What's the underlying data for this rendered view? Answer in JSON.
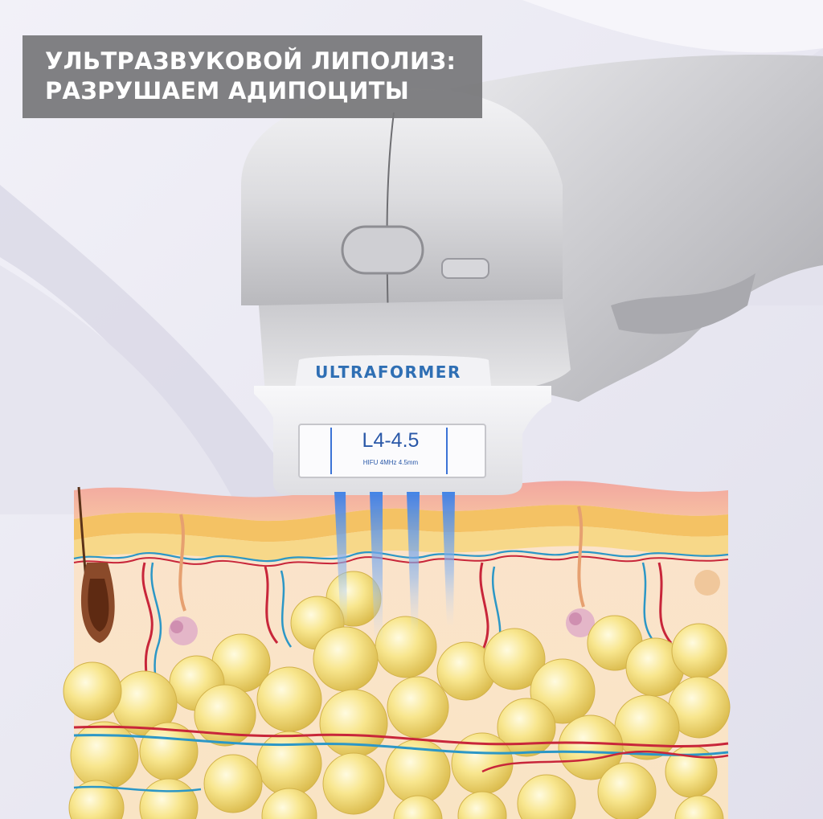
{
  "headline": {
    "line1": "УЛЬТРАЗВУКОВОЙ ЛИПОЛИЗ:",
    "line2": "РАЗРУШАЕМ АДИПОЦИТЫ"
  },
  "device": {
    "brand": "ULTRAFORMER",
    "cartridge_model": "L4-4.5",
    "cartridge_spec": "HIFU 4MHz 4.5mm"
  },
  "colors": {
    "background": "#ecebf4",
    "headline_bar": "#767678",
    "brand_blue": "#2f6fb4",
    "beam_blue": "#4f8ee8",
    "fat_cell": "#f4dc74",
    "vein_blue": "#2c97c6",
    "artery_red": "#c8263a"
  },
  "icons": {
    "device": "hifu-handpiece-icon",
    "beams": "ultrasound-beam-icon",
    "skin": "skin-cross-section-icon",
    "hair": "hair-follicle-icon",
    "fat": "fat-cell-icon"
  }
}
